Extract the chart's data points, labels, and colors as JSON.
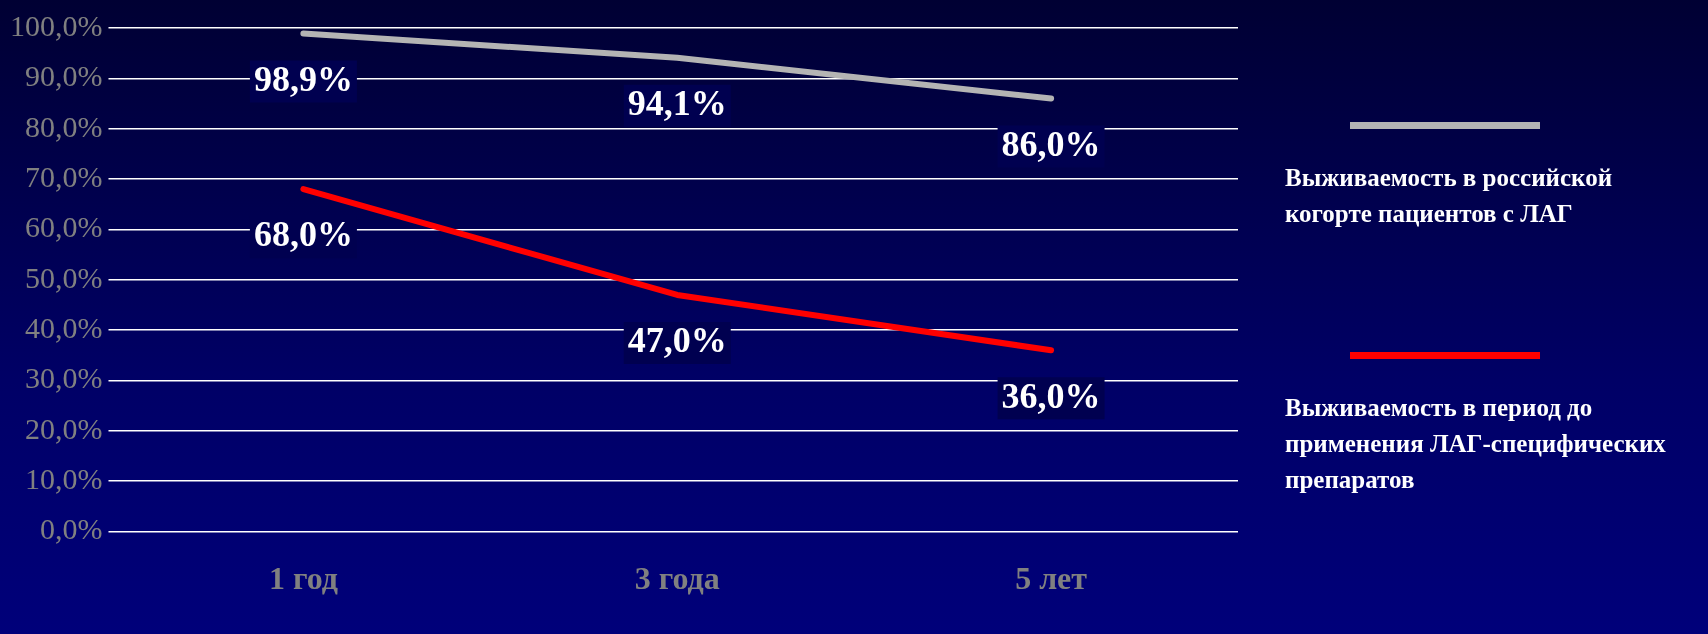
{
  "chart_data": {
    "type": "line",
    "categories": [
      "1 год",
      "3 года",
      "5 лет"
    ],
    "series": [
      {
        "name": "Выживаемость в российской когорте пациентов с ЛАГ",
        "color": "#b4b4b4",
        "values": [
          98.9,
          94.1,
          86.0
        ]
      },
      {
        "name": "Выживаемость в период до применения ЛАГ-специфических препаратов",
        "color": "#ff0000",
        "values": [
          68.0,
          47.0,
          36.0
        ]
      }
    ],
    "value_labels": [
      [
        "98,9%",
        "94,1%",
        "86,0%"
      ],
      [
        "68,0%",
        "47,0%",
        "36,0%"
      ]
    ],
    "ylim": [
      0,
      100
    ],
    "yticks": [
      {
        "value": 0,
        "label": "0,0%"
      },
      {
        "value": 10,
        "label": "10,0%"
      },
      {
        "value": 20,
        "label": "20,0%"
      },
      {
        "value": 30,
        "label": "30,0%"
      },
      {
        "value": 40,
        "label": "40,0%"
      },
      {
        "value": 50,
        "label": "50,0%"
      },
      {
        "value": 60,
        "label": "60,0%"
      },
      {
        "value": 70,
        "label": "70,0%"
      },
      {
        "value": 80,
        "label": "80,0%"
      },
      {
        "value": 90,
        "label": "90,0%"
      },
      {
        "value": 100,
        "label": "100,0%"
      }
    ],
    "grid": "y",
    "legend": "right",
    "marker": "none",
    "line_style": "solid"
  }
}
